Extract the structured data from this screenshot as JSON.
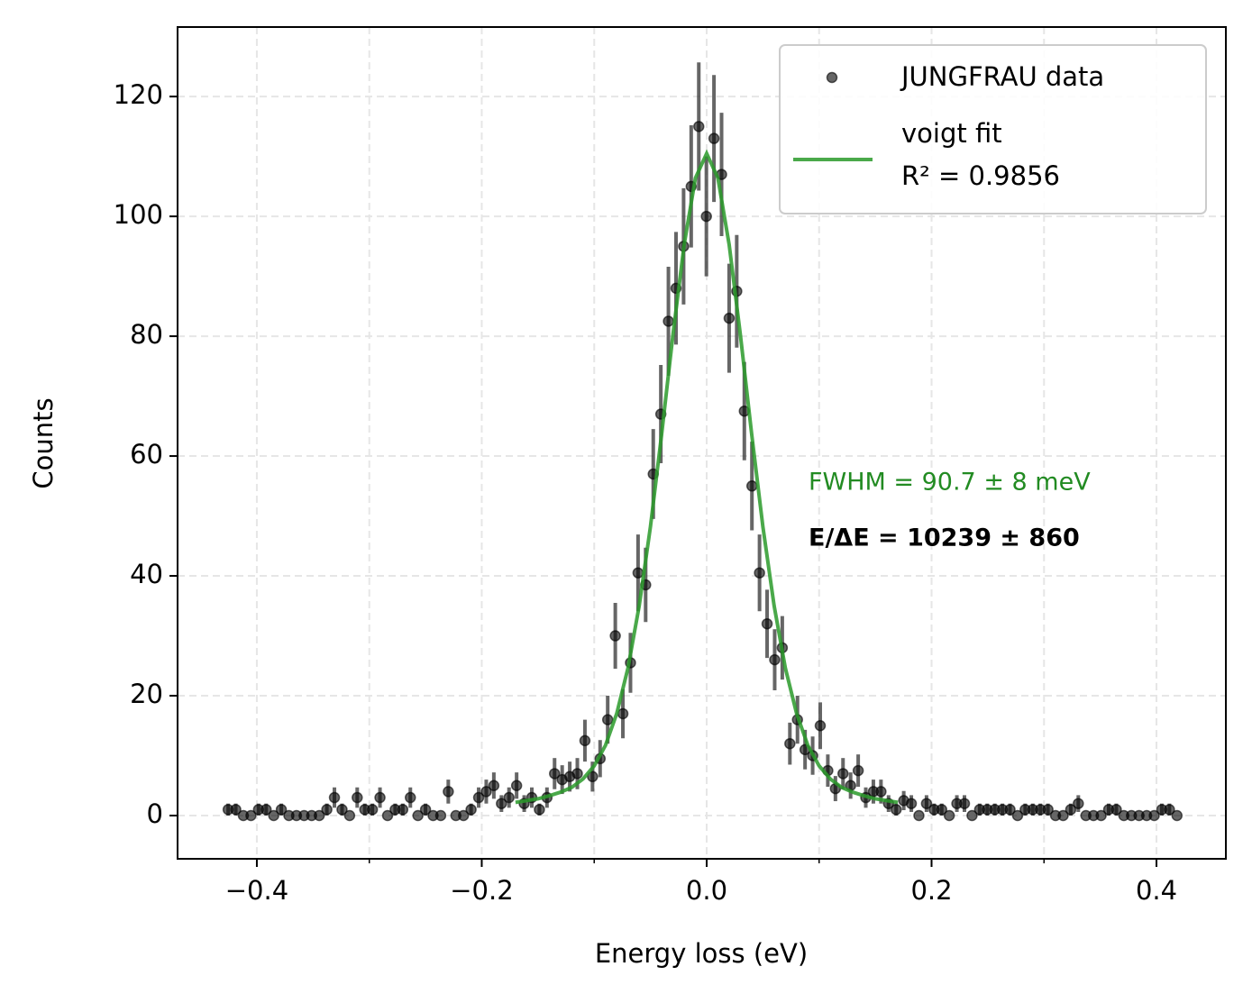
{
  "chart_data": {
    "type": "scatter",
    "x_label": "Energy loss (eV)",
    "y_label": "Counts",
    "xlim": [
      -0.4705,
      0.4617
    ],
    "ylim": [
      -7.22,
      131.6
    ],
    "xticks": [
      {
        "value": -0.4,
        "label": "−0.4"
      },
      {
        "value": -0.2,
        "label": "−0.2"
      },
      {
        "value": 0,
        "label": "0.0"
      },
      {
        "value": 0.2,
        "label": "0.2"
      },
      {
        "value": 0.4,
        "label": "0.4"
      }
    ],
    "xminor": [
      -0.3,
      -0.1,
      0.1,
      0.3
    ],
    "yticks": [
      0,
      20,
      40,
      60,
      80,
      100,
      120
    ],
    "grid": true,
    "legend": "upper right",
    "series": [
      {
        "name": "JUNGFRAU data",
        "type": "scatter",
        "color": "#000000",
        "x": [
          -0.4255,
          -0.41875,
          -0.412,
          -0.40525,
          -0.3985,
          -0.39175,
          -0.385,
          -0.37825,
          -0.3715,
          -0.36475,
          -0.358,
          -0.35125,
          -0.3445,
          -0.33775,
          -0.331,
          -0.32425,
          -0.3175,
          -0.31075,
          -0.304,
          -0.29725,
          -0.2905,
          -0.28375,
          -0.277,
          -0.27025,
          -0.2635,
          -0.25675,
          -0.25,
          -0.24325,
          -0.2365,
          -0.22975,
          -0.223,
          -0.21625,
          -0.2095,
          -0.20275,
          -0.196,
          -0.18925,
          -0.1825,
          -0.17575,
          -0.169,
          -0.16225,
          -0.1555,
          -0.14875,
          -0.142,
          -0.13525,
          -0.1285,
          -0.12175,
          -0.115,
          -0.10825,
          -0.1015,
          -0.09475,
          -0.088,
          -0.08125,
          -0.0745,
          -0.06775,
          -0.061,
          -0.05425,
          -0.0475,
          -0.04075,
          -0.034,
          -0.02725,
          -0.0205,
          -0.01375,
          -0.007,
          -0.00025,
          0.0065,
          0.01325,
          0.02,
          0.02675,
          0.0335,
          0.04025,
          0.047,
          0.05375,
          0.0605,
          0.06725,
          0.074,
          0.08075,
          0.0875,
          0.09425,
          0.101,
          0.10775,
          0.1145,
          0.12125,
          0.128,
          0.13475,
          0.1415,
          0.14825,
          0.155,
          0.16175,
          0.1685,
          0.17525,
          0.182,
          0.18875,
          0.1955,
          0.20225,
          0.209,
          0.21575,
          0.2225,
          0.22925,
          0.236,
          0.24275,
          0.2495,
          0.25625,
          0.263,
          0.26975,
          0.2765,
          0.28325,
          0.29,
          0.29675,
          0.3035,
          0.31025,
          0.317,
          0.32375,
          0.3305,
          0.33725,
          0.344,
          0.35075,
          0.3575,
          0.36425,
          0.371,
          0.37775,
          0.3845,
          0.39125,
          0.398,
          0.40475,
          0.4115,
          0.41825
        ],
        "values": [
          1,
          1,
          0,
          0,
          1,
          1,
          0,
          1,
          0,
          0,
          0,
          0,
          0,
          1,
          3,
          1,
          0,
          3,
          1,
          1,
          3,
          0,
          1,
          1,
          3,
          0,
          1,
          0,
          0,
          4,
          0,
          0,
          1,
          3,
          4,
          5,
          2,
          3,
          5,
          2,
          3,
          1,
          3,
          7,
          6,
          6.5,
          7,
          12.5,
          6.5,
          9.5,
          16,
          30,
          17,
          25.5,
          40.5,
          38.5,
          57,
          67,
          82.5,
          88,
          95,
          105,
          115,
          100,
          113,
          107,
          83,
          87.5,
          67.5,
          55,
          40.5,
          32,
          26,
          28,
          12,
          16,
          11,
          10,
          15,
          7.5,
          4.5,
          7,
          5,
          7.5,
          3,
          4,
          4,
          2,
          1,
          2.5,
          2,
          0,
          2,
          1,
          1,
          0,
          2,
          2,
          0,
          1,
          1,
          1,
          1,
          1,
          0,
          1,
          1,
          1,
          1,
          0,
          0,
          1,
          2,
          0,
          0,
          0,
          1,
          1,
          0,
          0,
          0,
          0,
          0,
          1,
          1,
          0
        ],
        "errors": [
          1,
          1,
          0,
          0,
          1,
          1,
          0,
          1,
          0,
          0,
          0,
          0,
          0,
          1,
          1.7,
          1,
          0,
          1.7,
          1,
          1,
          1.7,
          0,
          1,
          1,
          1.7,
          0,
          1,
          0,
          0,
          2,
          0,
          0,
          1,
          1.7,
          2,
          2.2,
          1.4,
          1.7,
          2.2,
          1.4,
          1.7,
          1,
          1.7,
          2.6,
          2.4,
          2.5,
          2.6,
          3.5,
          2.5,
          3.1,
          4,
          5.5,
          4.1,
          5,
          6.4,
          6.2,
          7.5,
          8.2,
          9.1,
          9.4,
          9.7,
          10.2,
          10.7,
          10,
          10.6,
          10.3,
          9.1,
          9.4,
          8.2,
          7.4,
          6.4,
          5.7,
          5.1,
          5.3,
          3.5,
          4,
          3.3,
          3.2,
          3.9,
          2.7,
          2.1,
          2.6,
          2.2,
          2.7,
          1.7,
          2,
          2,
          1.4,
          1,
          1.6,
          1.4,
          0,
          1.4,
          1,
          1,
          0,
          1.4,
          1.4,
          0,
          1,
          1,
          1,
          1,
          1,
          0,
          1,
          1,
          1,
          1,
          0,
          0,
          1,
          1.4,
          0,
          0,
          0,
          1,
          1,
          0,
          0,
          0,
          0,
          0,
          1,
          1,
          0
        ]
      },
      {
        "name": "voigt fit",
        "type": "line",
        "color": "#2a9a2a",
        "x": [
          -0.17,
          -0.16,
          -0.15,
          -0.14,
          -0.13,
          -0.12,
          -0.11,
          -0.1,
          -0.09,
          -0.08,
          -0.07,
          -0.06,
          -0.05,
          -0.04,
          -0.03,
          -0.02,
          -0.01,
          0,
          0.01,
          0.02,
          0.03,
          0.04,
          0.05,
          0.06,
          0.07,
          0.08,
          0.09,
          0.1,
          0.11,
          0.12,
          0.13,
          0.14,
          0.15,
          0.16,
          0.17
        ],
        "values": [
          2.2,
          2.5,
          2.8,
          3.3,
          3.9,
          4.7,
          6.1,
          8.3,
          11.7,
          17.0,
          24.6,
          35.0,
          48.2,
          63.7,
          80.2,
          95.3,
          106.4,
          110.5,
          106.4,
          95.3,
          80.2,
          63.7,
          48.2,
          35.0,
          24.6,
          17.0,
          11.7,
          8.3,
          6.1,
          4.7,
          3.9,
          3.3,
          2.8,
          2.5,
          2.2
        ]
      }
    ],
    "fit_quality": "R² = 0.9856",
    "annotations": [
      {
        "text": "FWHM = 90.7 ± 8 meV",
        "color": "#228b22",
        "bold": false
      },
      {
        "text": "E/ΔE = 10239 ± 860",
        "color": "#000000",
        "bold": true
      }
    ]
  }
}
